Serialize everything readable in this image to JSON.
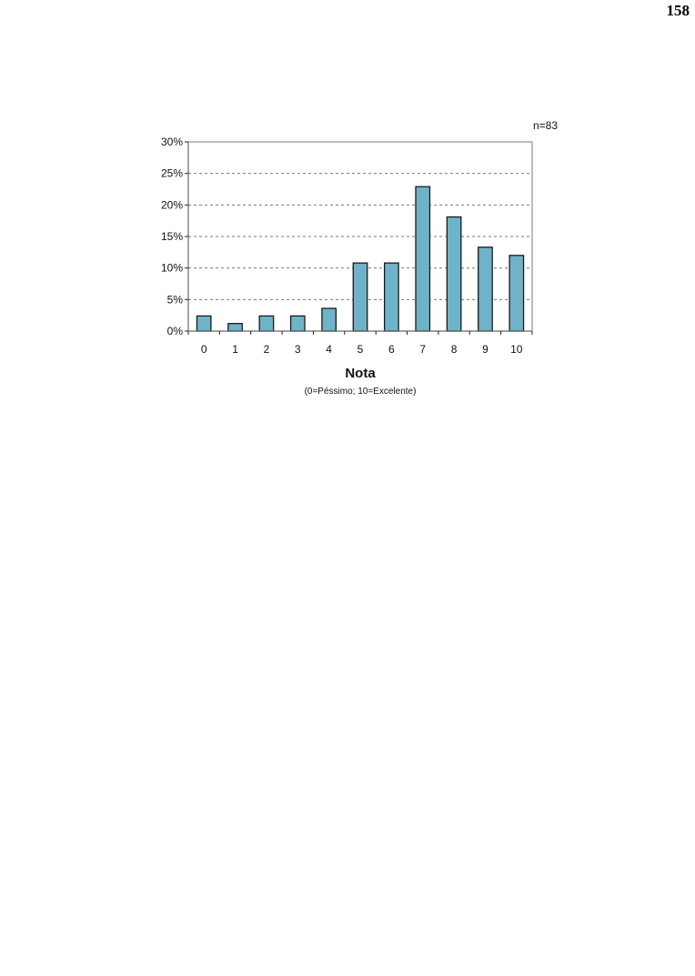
{
  "page": {
    "number": "158"
  },
  "chart_data": {
    "type": "bar",
    "categories": [
      "0",
      "1",
      "2",
      "3",
      "4",
      "5",
      "6",
      "7",
      "8",
      "9",
      "10"
    ],
    "values": [
      2.4,
      1.2,
      2.4,
      2.4,
      3.6,
      10.8,
      10.8,
      22.9,
      18.1,
      13.3,
      12.0
    ],
    "value_unit": "%",
    "ylim": [
      0,
      30
    ],
    "yticks": [
      "0%",
      "5%",
      "10%",
      "15%",
      "20%",
      "25%",
      "30%"
    ],
    "ytick_values": [
      0,
      5,
      10,
      15,
      20,
      25,
      30
    ],
    "xlabel": "Nota",
    "xsublabel": "(0=Péssimo; 10=Excelente)",
    "annotation": "n=83",
    "grid": "horizontal dashed",
    "bar_color": "#6fb3c9",
    "bar_stroke": "#1a1a1a"
  }
}
